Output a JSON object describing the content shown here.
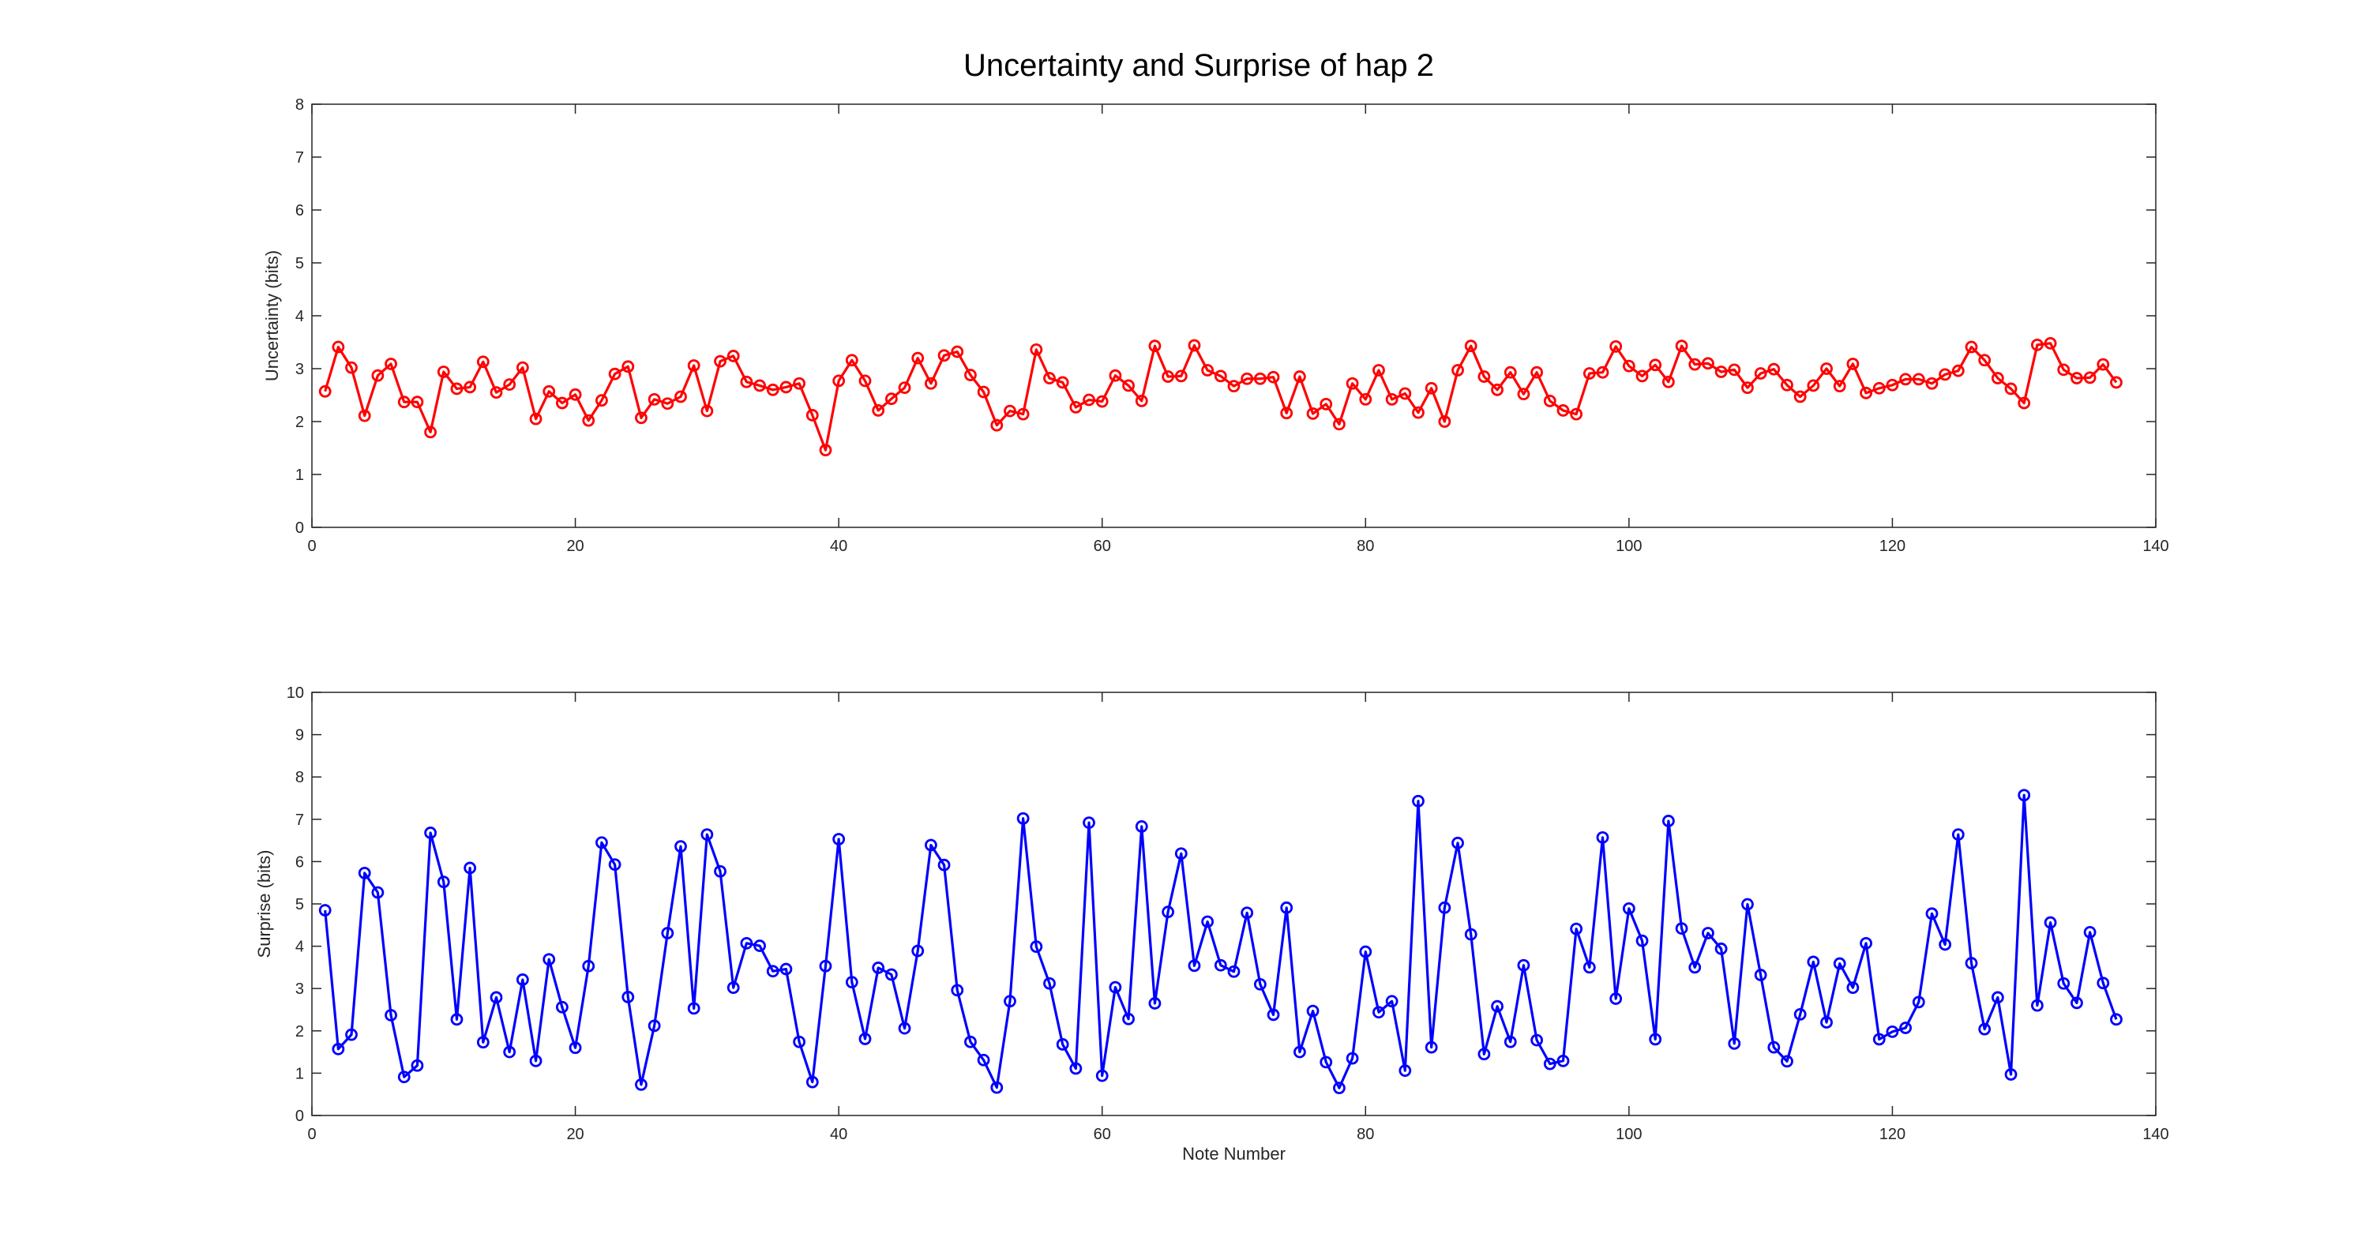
{
  "figure": {
    "title": "Uncertainty and Surprise of hap 2"
  },
  "chart_data": [
    {
      "type": "line",
      "xlabel": "",
      "ylabel": "Uncertainty (bits)",
      "xlim": [
        0,
        140
      ],
      "ylim": [
        0,
        8
      ],
      "xticks": [
        0,
        20,
        40,
        60,
        80,
        100,
        120,
        140
      ],
      "yticks": [
        0,
        1,
        2,
        3,
        4,
        5,
        6,
        7,
        8
      ],
      "grid": false,
      "color": "#ff0000",
      "marker": "circle",
      "series": [
        {
          "x": [
            1,
            2,
            3,
            4,
            5,
            6,
            7,
            8,
            9,
            10,
            11,
            12,
            13,
            14,
            15,
            16,
            17,
            18,
            19,
            20,
            21,
            22,
            23,
            24,
            25,
            26,
            27,
            28,
            29,
            30,
            31,
            32,
            33,
            34,
            35,
            36,
            37,
            38,
            39,
            40,
            41,
            42,
            43,
            44,
            45,
            46,
            47,
            48,
            49,
            50,
            51,
            52,
            53,
            54,
            55,
            56,
            57,
            58,
            59,
            60,
            61,
            62,
            63,
            64,
            65,
            66,
            67,
            68,
            69,
            70,
            71,
            72,
            73,
            74,
            75,
            76,
            77,
            78,
            79,
            80,
            81,
            82,
            83,
            84,
            85,
            86,
            87,
            88,
            89,
            90,
            91,
            92,
            93,
            94,
            95,
            96,
            97,
            98,
            99,
            100,
            101,
            102,
            103,
            104,
            105,
            106,
            107,
            108,
            109,
            110,
            111,
            112,
            113,
            114,
            115,
            116,
            117,
            118,
            119,
            120,
            121,
            122,
            123,
            124,
            125,
            126,
            127,
            128,
            129,
            130,
            131,
            132,
            133,
            134,
            135,
            136,
            137
          ],
          "values": [
            2.57,
            3.41,
            3.02,
            2.11,
            2.87,
            3.09,
            2.37,
            2.37,
            1.8,
            2.94,
            2.62,
            2.65,
            3.13,
            2.55,
            2.7,
            3.02,
            2.05,
            2.57,
            2.35,
            2.51,
            2.02,
            2.4,
            2.9,
            3.04,
            2.07,
            2.42,
            2.34,
            2.47,
            3.06,
            2.2,
            3.14,
            3.24,
            2.75,
            2.68,
            2.6,
            2.65,
            2.72,
            2.12,
            1.46,
            2.77,
            3.16,
            2.77,
            2.21,
            2.43,
            2.64,
            3.2,
            2.72,
            3.25,
            3.32,
            2.88,
            2.56,
            1.93,
            2.2,
            2.14,
            3.36,
            2.82,
            2.74,
            2.27,
            2.41,
            2.38,
            2.87,
            2.68,
            2.39,
            3.43,
            2.85,
            2.86,
            3.44,
            2.97,
            2.86,
            2.67,
            2.81,
            2.81,
            2.84,
            2.16,
            2.85,
            2.15,
            2.33,
            1.95,
            2.72,
            2.42,
            2.97,
            2.42,
            2.53,
            2.17,
            2.63,
            2.0,
            2.97,
            3.43,
            2.85,
            2.6,
            2.93,
            2.52,
            2.93,
            2.39,
            2.21,
            2.14,
            2.91,
            2.93,
            3.42,
            3.05,
            2.86,
            3.07,
            2.75,
            3.43,
            3.08,
            3.1,
            2.94,
            2.98,
            2.64,
            2.91,
            2.99,
            2.69,
            2.47,
            2.68,
            3.0,
            2.67,
            3.09,
            2.54,
            2.63,
            2.69,
            2.8,
            2.8,
            2.72,
            2.89,
            2.96,
            3.41,
            3.16,
            2.82,
            2.62,
            2.35,
            3.45,
            3.48,
            2.98,
            2.82,
            2.83,
            3.08,
            2.74
          ]
        }
      ]
    },
    {
      "type": "line",
      "xlabel": "Note Number",
      "ylabel": "Surprise (bits)",
      "xlim": [
        0,
        140
      ],
      "ylim": [
        0,
        10
      ],
      "xticks": [
        0,
        20,
        40,
        60,
        80,
        100,
        120,
        140
      ],
      "yticks": [
        0,
        1,
        2,
        3,
        4,
        5,
        6,
        7,
        8,
        9,
        10
      ],
      "grid": false,
      "color": "#0000ff",
      "marker": "circle",
      "series": [
        {
          "x": [
            1,
            2,
            3,
            4,
            5,
            6,
            7,
            8,
            9,
            10,
            11,
            12,
            13,
            14,
            15,
            16,
            17,
            18,
            19,
            20,
            21,
            22,
            23,
            24,
            25,
            26,
            27,
            28,
            29,
            30,
            31,
            32,
            33,
            34,
            35,
            36,
            37,
            38,
            39,
            40,
            41,
            42,
            43,
            44,
            45,
            46,
            47,
            48,
            49,
            50,
            51,
            52,
            53,
            54,
            55,
            56,
            57,
            58,
            59,
            60,
            61,
            62,
            63,
            64,
            65,
            66,
            67,
            68,
            69,
            70,
            71,
            72,
            73,
            74,
            75,
            76,
            77,
            78,
            79,
            80,
            81,
            82,
            83,
            84,
            85,
            86,
            87,
            88,
            89,
            90,
            91,
            92,
            93,
            94,
            95,
            96,
            97,
            98,
            99,
            100,
            101,
            102,
            103,
            104,
            105,
            106,
            107,
            108,
            109,
            110,
            111,
            112,
            113,
            114,
            115,
            116,
            117,
            118,
            119,
            120,
            121,
            122,
            123,
            124,
            125,
            126,
            127,
            128,
            129,
            130,
            131,
            132,
            133,
            134,
            135,
            136,
            137
          ],
          "values": [
            4.85,
            1.57,
            1.91,
            5.73,
            5.27,
            2.37,
            0.91,
            1.18,
            6.68,
            5.52,
            2.27,
            5.85,
            1.73,
            2.79,
            1.5,
            3.21,
            1.29,
            3.69,
            2.56,
            1.6,
            3.53,
            6.45,
            5.93,
            2.8,
            0.73,
            2.12,
            4.31,
            6.36,
            2.53,
            6.64,
            5.77,
            3.02,
            4.07,
            4.01,
            3.41,
            3.46,
            1.74,
            0.79,
            3.53,
            6.53,
            3.15,
            1.81,
            3.49,
            3.33,
            2.06,
            3.89,
            6.39,
            5.92,
            2.96,
            1.74,
            1.31,
            0.66,
            2.7,
            7.02,
            3.99,
            3.12,
            1.68,
            1.11,
            6.92,
            0.94,
            3.03,
            2.28,
            6.83,
            2.65,
            4.81,
            6.19,
            3.54,
            4.58,
            3.55,
            3.4,
            4.79,
            3.1,
            2.38,
            4.91,
            1.5,
            2.47,
            1.26,
            0.65,
            1.35,
            3.87,
            2.44,
            2.7,
            1.06,
            7.43,
            1.61,
            4.91,
            6.44,
            4.28,
            1.45,
            2.58,
            1.74,
            3.55,
            1.78,
            1.22,
            1.29,
            4.41,
            3.5,
            6.57,
            2.76,
            4.89,
            4.13,
            1.8,
            6.96,
            4.42,
            3.5,
            4.31,
            3.94,
            1.7,
            4.99,
            3.32,
            1.61,
            1.28,
            2.39,
            3.63,
            2.2,
            3.59,
            3.02,
            4.07,
            1.8,
            1.98,
            2.07,
            2.68,
            4.77,
            4.04,
            6.64,
            3.6,
            2.04,
            2.79,
            0.97,
            7.57,
            2.6,
            4.56,
            3.12,
            2.66,
            4.33,
            3.13,
            2.27
          ]
        }
      ]
    }
  ]
}
